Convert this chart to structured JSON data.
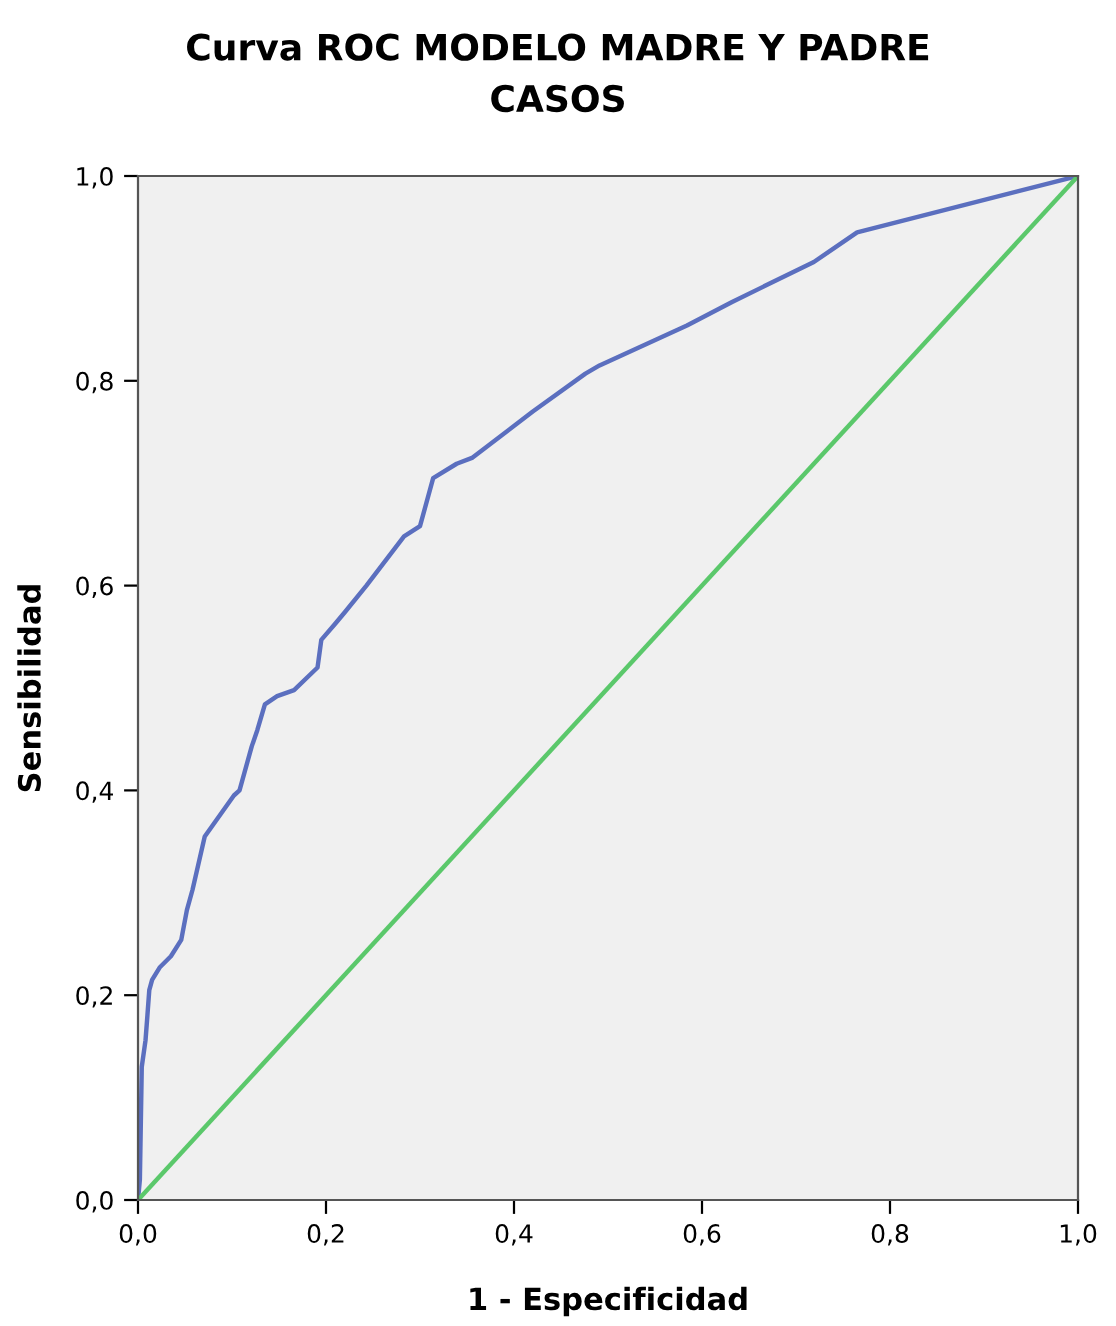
{
  "chart_data": {
    "type": "line",
    "title": "Curva ROC MODELO MADRE Y PADRE\nCASOS",
    "xlabel": "1 - Especificidad",
    "ylabel": "Sensibilidad",
    "xlim": [
      0,
      1
    ],
    "ylim": [
      0,
      1
    ],
    "xticks": [
      {
        "value": 0,
        "label": "0,0"
      },
      {
        "value": 0.2,
        "label": "0,2"
      },
      {
        "value": 0.4,
        "label": "0,4"
      },
      {
        "value": 0.6,
        "label": "0,6"
      },
      {
        "value": 0.8,
        "label": "0,8"
      },
      {
        "value": 1,
        "label": "1,0"
      }
    ],
    "yticks": [
      {
        "value": 0,
        "label": "0,0"
      },
      {
        "value": 0.2,
        "label": "0,2"
      },
      {
        "value": 0.4,
        "label": "0,4"
      },
      {
        "value": 0.6,
        "label": "0,6"
      },
      {
        "value": 0.8,
        "label": "0,8"
      },
      {
        "value": 1,
        "label": "1,0"
      }
    ],
    "grid": false,
    "marker": "none",
    "line_style": "solid",
    "series": [
      {
        "color": "#5b6fbf",
        "x": [
          0,
          0.002,
          0.004,
          0.008,
          0.01,
          0.012,
          0.015,
          0.023,
          0.035,
          0.046,
          0.052,
          0.058,
          0.071,
          0.102,
          0.108,
          0.121,
          0.127,
          0.135,
          0.148,
          0.166,
          0.191,
          0.195,
          0.21,
          0.22,
          0.243,
          0.283,
          0.3,
          0.314,
          0.339,
          0.356,
          0.42,
          0.476,
          0.491,
          0.584,
          0.632,
          0.719,
          0.765,
          1
        ],
        "values": [
          0,
          0.02,
          0.13,
          0.156,
          0.18,
          0.205,
          0.215,
          0.227,
          0.238,
          0.254,
          0.283,
          0.303,
          0.355,
          0.395,
          0.4,
          0.443,
          0.459,
          0.484,
          0.492,
          0.498,
          0.52,
          0.547,
          0.563,
          0.574,
          0.6,
          0.648,
          0.658,
          0.705,
          0.719,
          0.725,
          0.77,
          0.807,
          0.815,
          0.854,
          0.877,
          0.916,
          0.945,
          1
        ]
      },
      {
        "color": "#5bc86b",
        "x": [
          0,
          1
        ],
        "values": [
          0,
          1
        ]
      }
    ]
  }
}
